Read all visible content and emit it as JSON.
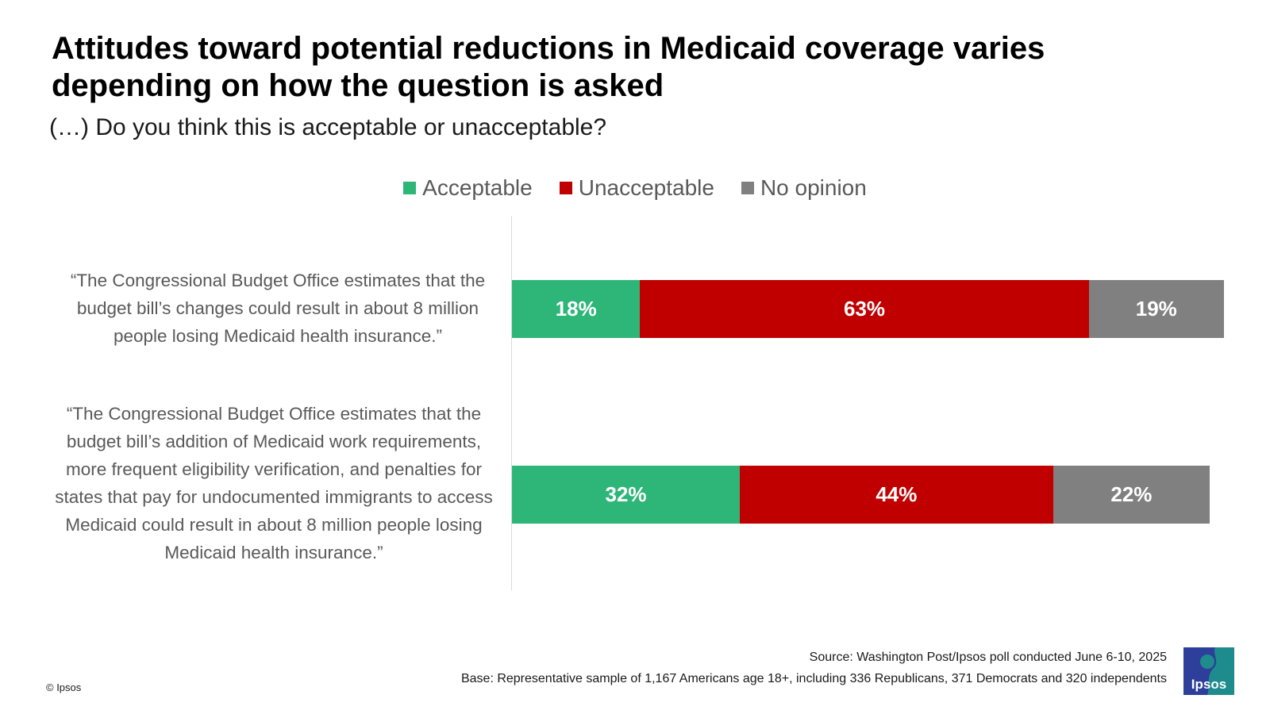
{
  "title": "Attitudes toward potential reductions in Medicaid coverage varies depending on how the question is asked",
  "subtitle": "(…) Do you think this is acceptable or unacceptable?",
  "source_line": "Source: Washington Post/Ipsos poll conducted June 6-10, 2025",
  "base_line": "Base: Representative sample of  1,167 Americans age 18+, including 336 Republicans, 371 Democrats and 320 independents",
  "copyright": "© Ipsos",
  "logo": {
    "text": "Ipsos",
    "icon": "ipsos-logo-icon",
    "color": "#1e8c8c",
    "accent": "#2d3e9b"
  },
  "chart_data": {
    "type": "bar",
    "orientation": "horizontal",
    "stacked": true,
    "categories": [
      "“The Congressional Budget Office estimates that the budget bill’s changes could result in about 8 million people losing Medicaid health insurance.”",
      "“The Congressional Budget Office estimates that the budget bill’s addition of Medicaid work requirements, more frequent eligibility verification, and penalties for states that pay for undocumented immigrants to access Medicaid could result in about 8 million people losing Medicaid health insurance.”"
    ],
    "series": [
      {
        "name": "Acceptable",
        "color": "#2eb678",
        "values": [
          18,
          32
        ],
        "labels": [
          "18%",
          "32%"
        ]
      },
      {
        "name": "Unacceptable",
        "color": "#c00000",
        "values": [
          63,
          44
        ],
        "labels": [
          "63%",
          "44%"
        ]
      },
      {
        "name": "No opinion",
        "color": "#808080",
        "values": [
          19,
          22
        ],
        "labels": [
          "19%",
          "22%"
        ]
      }
    ],
    "xlim": [
      0,
      100
    ],
    "legend_position": "top-center",
    "grid": false
  }
}
